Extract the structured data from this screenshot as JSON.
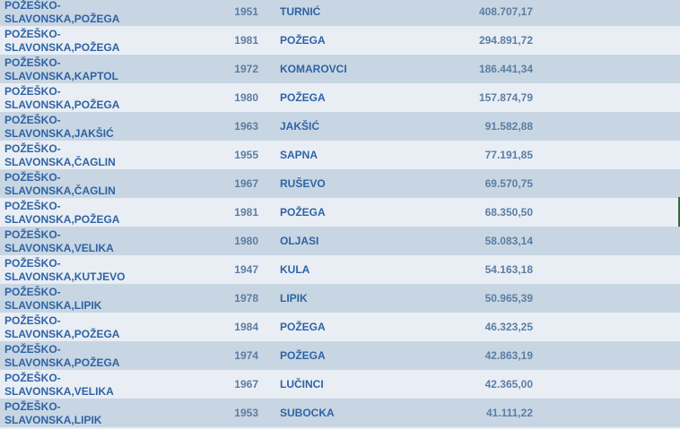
{
  "rows": [
    {
      "county": "POŽEŠKO-",
      "town": "SLAVONSKA,POŽEGA",
      "year": "1951",
      "place": "TURNIĆ",
      "amount": "408.707,17"
    },
    {
      "county": "POŽEŠKO-",
      "town": "SLAVONSKA,POŽEGA",
      "year": "1981",
      "place": "POŽEGA",
      "amount": "294.891,72"
    },
    {
      "county": "POŽEŠKO-",
      "town": "SLAVONSKA,KAPTOL",
      "year": "1972",
      "place": "KOMAROVCI",
      "amount": "186.441,34"
    },
    {
      "county": "POŽEŠKO-",
      "town": "SLAVONSKA,POŽEGA",
      "year": "1980",
      "place": "POŽEGA",
      "amount": "157.874,79"
    },
    {
      "county": "POŽEŠKO-",
      "town": "SLAVONSKA,JAKŠIĆ",
      "year": "1963",
      "place": "JAKŠIĆ",
      "amount": "91.582,88"
    },
    {
      "county": "POŽEŠKO-",
      "town": "SLAVONSKA,ČAGLIN",
      "year": "1955",
      "place": "SAPNA",
      "amount": "77.191,85"
    },
    {
      "county": "POŽEŠKO-",
      "town": "SLAVONSKA,ČAGLIN",
      "year": "1967",
      "place": "RUŠEVO",
      "amount": "69.570,75"
    },
    {
      "county": "POŽEŠKO-",
      "town": "SLAVONSKA,POŽEGA",
      "year": "1981",
      "place": "POŽEGA",
      "amount": "68.350,50"
    },
    {
      "county": "POŽEŠKO-",
      "town": "SLAVONSKA,VELIKA",
      "year": "1980",
      "place": "OLJASI",
      "amount": "58.083,14"
    },
    {
      "county": "POŽEŠKO-",
      "town": "SLAVONSKA,KUTJEVO",
      "year": "1947",
      "place": "KULA",
      "amount": "54.163,18"
    },
    {
      "county": "POŽEŠKO-",
      "town": "SLAVONSKA,LIPIK",
      "year": "1978",
      "place": "LIPIK",
      "amount": "50.965,39"
    },
    {
      "county": "POŽEŠKO-",
      "town": "SLAVONSKA,POŽEGA",
      "year": "1984",
      "place": "POŽEGA",
      "amount": "46.323,25"
    },
    {
      "county": "POŽEŠKO-",
      "town": "SLAVONSKA,POŽEGA",
      "year": "1974",
      "place": "POŽEGA",
      "amount": "42.863,19"
    },
    {
      "county": "POŽEŠKO-",
      "town": "SLAVONSKA,VELIKA",
      "year": "1967",
      "place": "LUČINCI",
      "amount": "42.365,00"
    },
    {
      "county": "POŽEŠKO-",
      "town": "SLAVONSKA,LIPIK",
      "year": "1953",
      "place": "SUBOCKA",
      "amount": "41.111,22"
    }
  ],
  "colors": {
    "row_dark": "#c8d6e3",
    "row_light": "#e9eef5",
    "text": "#2f63a4",
    "numbers": "#5b7ea3"
  }
}
